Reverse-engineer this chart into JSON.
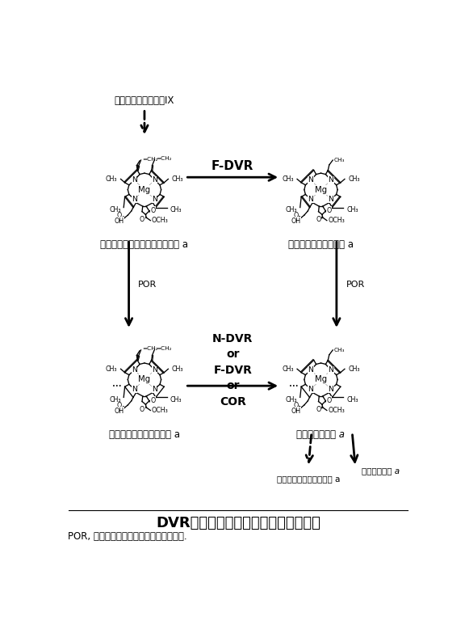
{
  "title": "DVRが関与するクロロフィルの生合成",
  "subtitle": "POR, プロトクロロフィリドレダクターゼ.",
  "top_label": "プロトポルフィリンIX",
  "label_TL": "ジビニルプロトクロロフィリド a",
  "label_TR": "プロトクロロフィリド a",
  "label_BL": "ジビニルクロロフィリド a",
  "label_BR": "クロロフィリド a",
  "label_BCL": "バクテリオクロロフィル a",
  "label_BCR": "クロロフィル a",
  "label_FDVR": "F-DVR",
  "label_NDVR": "N-DVR\nor\nF-DVR\nor\nCOR",
  "label_POR": "POR",
  "bg_color": "#ffffff",
  "text_color": "#000000",
  "figsize": [
    5.76,
    7.68
  ],
  "dpi": 100
}
